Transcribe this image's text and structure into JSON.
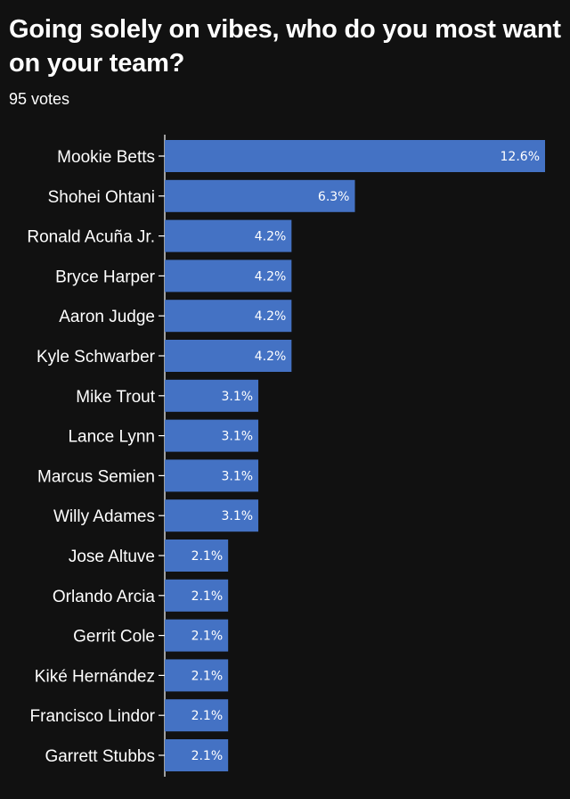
{
  "header": {
    "title": "Going solely on vibes, who do you most want on your team?",
    "subtitle": "95 votes"
  },
  "colors": {
    "background": "#111111",
    "bar": "#4472c4",
    "text": "#ffffff"
  },
  "chart_data": {
    "type": "bar",
    "orientation": "horizontal",
    "title": "Going solely on vibes, who do you most want on your team?",
    "subtitle": "95 votes",
    "xlabel": "",
    "ylabel": "",
    "unit": "%",
    "xlim": [
      0,
      12.6
    ],
    "grid": false,
    "legend": "none",
    "categories": [
      "Mookie Betts",
      "Shohei Ohtani",
      "Ronald Acuña Jr.",
      "Bryce Harper",
      "Aaron Judge",
      "Kyle Schwarber",
      "Mike Trout",
      "Lance Lynn",
      "Marcus Semien",
      "Willy Adames",
      "Jose Altuve",
      "Orlando Arcia",
      "Gerrit Cole",
      "Kiké Hernández",
      "Francisco Lindor",
      "Garrett Stubbs"
    ],
    "values": [
      12.6,
      6.3,
      4.2,
      4.2,
      4.2,
      4.2,
      3.1,
      3.1,
      3.1,
      3.1,
      2.1,
      2.1,
      2.1,
      2.1,
      2.1,
      2.1
    ],
    "value_labels": [
      "12.6%",
      "6.3%",
      "4.2%",
      "4.2%",
      "4.2%",
      "4.2%",
      "3.1%",
      "3.1%",
      "3.1%",
      "3.1%",
      "2.1%",
      "2.1%",
      "2.1%",
      "2.1%",
      "2.1%",
      "2.1%"
    ]
  }
}
